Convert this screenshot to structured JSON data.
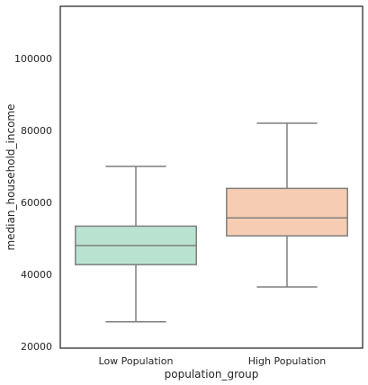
{
  "chart_data": {
    "type": "box",
    "xlabel": "population_group",
    "ylabel": "median_household_income",
    "ylim": [
      19500,
      114500
    ],
    "yticks": [
      20000,
      40000,
      60000,
      80000,
      100000
    ],
    "grid": false,
    "legend": "none",
    "categories": [
      "Low Population",
      "High Population"
    ],
    "boxes": [
      {
        "name": "Low Population",
        "whisker_low": 26800,
        "q1": 42700,
        "median": 48000,
        "q3": 53400,
        "whisker_high": 70000,
        "color": "#b9e2d1"
      },
      {
        "name": "High Population",
        "whisker_low": 36500,
        "q1": 50700,
        "median": 55700,
        "q3": 63900,
        "whisker_high": 82000,
        "color": "#f6cdb3"
      }
    ],
    "line_color": "#7f7f7f",
    "frame_color": "#262626"
  }
}
